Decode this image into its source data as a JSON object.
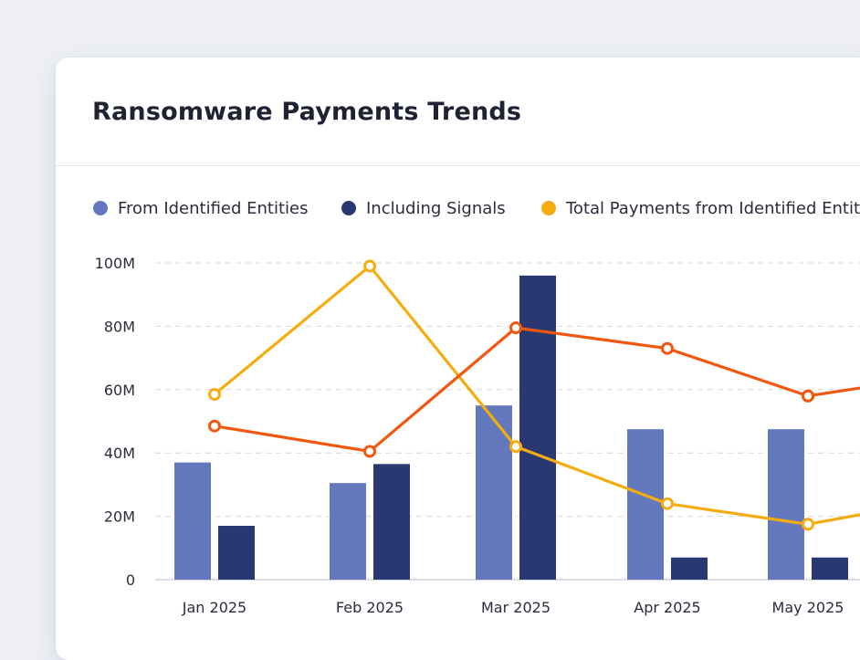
{
  "card": {
    "title": "Ransomware Payments Trends"
  },
  "colors": {
    "from_identified": "#6479bd",
    "including_signals": "#2a3872",
    "total_payments": "#f5ac0f",
    "orange_line": "#f2570f",
    "grid": "#d5d7de",
    "axis": "#cfd2da"
  },
  "chart_data": {
    "type": "bar",
    "categories": [
      "Jan 2025",
      "Feb 2025",
      "Mar 2025",
      "Apr 2025",
      "May 2025"
    ],
    "y_ticks": [
      "0",
      "20M",
      "40M",
      "60M",
      "80M",
      "100M"
    ],
    "ylim": [
      0,
      100
    ],
    "grid": true,
    "legend_position": "top-left",
    "series": [
      {
        "name": "From Identified Entities",
        "kind": "bar",
        "color": "#6479bd",
        "values": [
          37,
          30.5,
          55,
          47.5,
          47.5
        ]
      },
      {
        "name": "Including Signals",
        "kind": "bar",
        "color": "#2a3872",
        "values": [
          17,
          36.5,
          96,
          7,
          7
        ]
      },
      {
        "name": "Total Payments from Identified Entit",
        "kind": "line",
        "color": "#f5ac0f",
        "values": [
          58.5,
          99,
          42,
          24,
          17.5
        ]
      },
      {
        "kind": "line",
        "color": "#f2570f",
        "values": [
          48.5,
          40.5,
          79.5,
          73,
          58
        ]
      }
    ]
  }
}
